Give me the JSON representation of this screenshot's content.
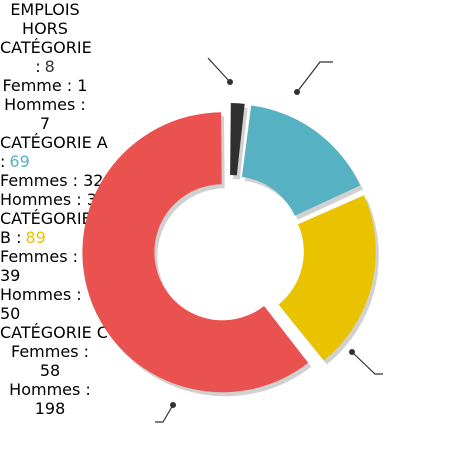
{
  "chart_data": {
    "type": "donut",
    "categories": [
      "EMPLOIS\nHORS CATÉGORIE :",
      "CATÉGORIE A :",
      "CATÉGORIE\nB :",
      "CATÉGORIE C :"
    ],
    "values": [
      8,
      69,
      89,
      256
    ],
    "colors": [
      "#2f2f2f",
      "#56b2c3",
      "#eac300",
      "#e9524f"
    ],
    "details": [
      [
        "Femme : 1",
        "Hommes : 7"
      ],
      [
        "Femmes : 32",
        "Hommes : 37"
      ],
      [
        "Femmes : 39",
        "Hommes : 50"
      ],
      [
        "Femmes : 58",
        "Hommes : 198"
      ]
    ]
  }
}
